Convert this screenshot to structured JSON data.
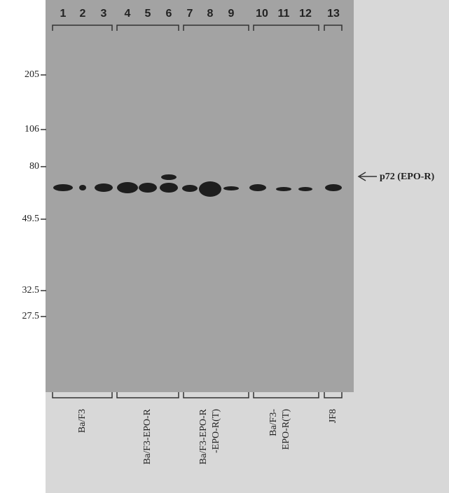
{
  "lanes": [
    "1",
    "2",
    "3",
    "4",
    "5",
    "6",
    "7",
    "8",
    "9",
    "10",
    "11",
    "12",
    "13"
  ],
  "markers": [
    "205",
    "106",
    "80",
    "49.5",
    "32.5",
    "27.5"
  ],
  "annotation": "p72 (EPO-R)",
  "groups": [
    {
      "lines": [
        "Ba/F3"
      ]
    },
    {
      "lines": [
        "Ba/F3-EPO-R"
      ]
    },
    {
      "lines": [
        "Ba/F3-EPO-R",
        "-EPO-R(T)"
      ]
    },
    {
      "lines": [
        "Ba/F3-",
        "EPO-R(T)"
      ]
    },
    {
      "lines": [
        "JF8"
      ]
    }
  ]
}
